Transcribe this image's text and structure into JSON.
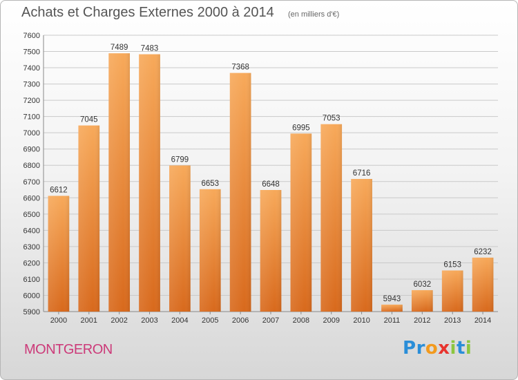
{
  "header": {
    "title": "Achats et Charges Externes 2000 à 2014",
    "unit": "(en milliers d'€)"
  },
  "footer": {
    "commune": "MONTGERON"
  },
  "logo": {
    "letters": [
      {
        "char": "P",
        "color": "#2a8ed8"
      },
      {
        "char": "r",
        "color": "#2a8ed8"
      },
      {
        "char": "o",
        "color": "#f29a1e"
      },
      {
        "char": "x",
        "color": "#e8342e"
      },
      {
        "char": "i",
        "color": "#8cc63f"
      },
      {
        "char": "t",
        "color": "#2a8ed8"
      },
      {
        "char": "i",
        "color": "#8cc63f"
      }
    ]
  },
  "chart_data": {
    "type": "bar",
    "title": "Achats et Charges Externes 2000 à 2014",
    "subtitle": "(en milliers d'€)",
    "categories": [
      "2000",
      "2001",
      "2002",
      "2003",
      "2004",
      "2005",
      "2006",
      "2007",
      "2008",
      "2009",
      "2010",
      "2011",
      "2012",
      "2013",
      "2014"
    ],
    "values": [
      6612,
      7045,
      7489,
      7483,
      6799,
      6653,
      7368,
      6648,
      6995,
      7053,
      6716,
      5943,
      6032,
      6153,
      6232
    ],
    "ylim": [
      5900,
      7600
    ],
    "yticks": [
      5900,
      6000,
      6100,
      6200,
      6300,
      6400,
      6500,
      6600,
      6700,
      6800,
      6900,
      7000,
      7100,
      7200,
      7300,
      7400,
      7500,
      7600
    ],
    "grid": true,
    "bar_color_top": "#f7a95a",
    "bar_color_bottom": "#d8691c",
    "xlabel": "",
    "ylabel": ""
  }
}
